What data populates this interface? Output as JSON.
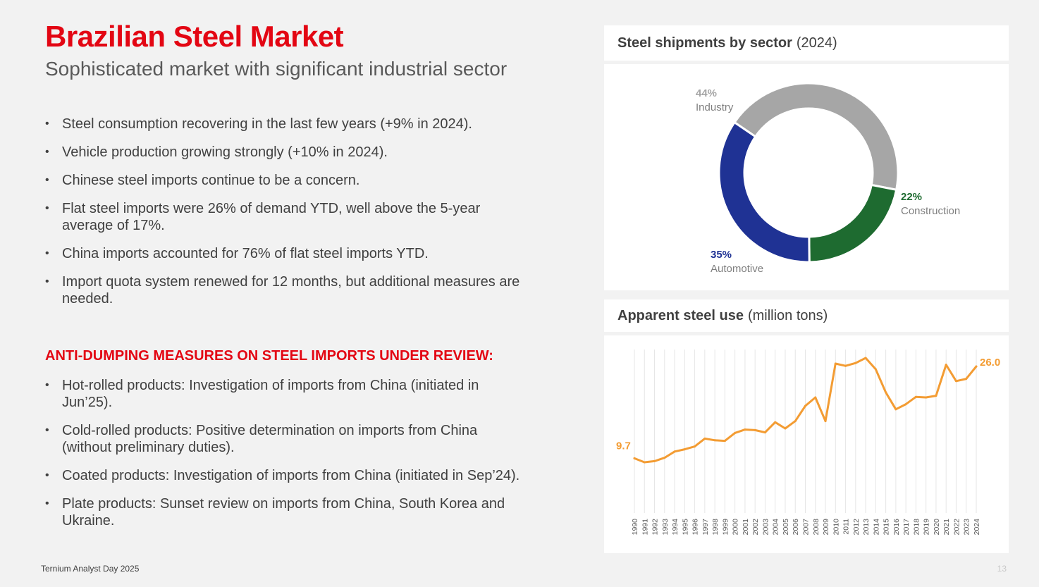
{
  "header": {
    "title": "Brazilian Steel Market",
    "subtitle": "Sophisticated market with significant industrial sector"
  },
  "bullets": [
    "Steel consumption recovering in the last few years (+9% in 2024).",
    "Vehicle production growing strongly (+10% in 2024).",
    "Chinese steel imports continue to be a concern.",
    "Flat steel imports were 26% of demand YTD, well above the 5-year average of 17%.",
    "China imports accounted for 76% of flat steel imports YTD.",
    "Import quota system renewed for 12 months, but additional measures are needed."
  ],
  "antidumping": {
    "heading": "ANTI-DUMPING MEASURES ON STEEL IMPORTS UNDER REVIEW:",
    "items": [
      "Hot-rolled products: Investigation of imports from China (initiated in Jun’25).",
      "Cold-rolled products: Positive determination on imports from China (without preliminary duties).",
      "Coated products: Investigation of imports from China (initiated in Sep’24).",
      "Plate products: Sunset review on imports from China, South Korea and Ukraine."
    ]
  },
  "footer": {
    "text": "Ternium Analyst Day 2025",
    "page": "13"
  },
  "donut_panel": {
    "title_bold": "Steel shipments by sector",
    "title_rest": "(2024)"
  },
  "line_panel": {
    "title_bold": "Apparent steel use",
    "title_rest": "(million tons)"
  },
  "chart_data": [
    {
      "type": "pie",
      "title": "Steel shipments by sector (2024)",
      "slices": [
        {
          "label": "Industry",
          "value": 44,
          "value_label": "44%",
          "color": "#a6a6a6"
        },
        {
          "label": "Construction",
          "value": 22,
          "value_label": "22%",
          "color": "#1e6b30"
        },
        {
          "label": "Automotive",
          "value": 35,
          "value_label": "35%",
          "color": "#1f3294"
        }
      ]
    },
    {
      "type": "line",
      "title": "Apparent steel use (million tons)",
      "color": "#f39c33",
      "x": [
        "1990",
        "1991",
        "1992",
        "1993",
        "1994",
        "1995",
        "1996",
        "1997",
        "1998",
        "1999",
        "2000",
        "2001",
        "2002",
        "2003",
        "2004",
        "2005",
        "2006",
        "2007",
        "2008",
        "2009",
        "2010",
        "2011",
        "2012",
        "2013",
        "2014",
        "2015",
        "2016",
        "2017",
        "2018",
        "2019",
        "2020",
        "2021",
        "2022",
        "2023",
        "2024"
      ],
      "values": [
        9.7,
        9.0,
        9.2,
        9.8,
        10.9,
        11.3,
        11.8,
        13.2,
        12.9,
        12.8,
        14.2,
        14.8,
        14.7,
        14.3,
        16.1,
        15.0,
        16.3,
        19.0,
        20.5,
        16.3,
        26.5,
        26.1,
        26.6,
        27.5,
        25.5,
        21.4,
        18.4,
        19.3,
        20.6,
        20.5,
        20.8,
        26.3,
        23.4,
        23.8,
        26.0
      ],
      "point_labels": [
        {
          "index": 0,
          "text": "9.7"
        },
        {
          "index": 34,
          "text": "26.0"
        }
      ],
      "ylim": [
        0,
        29
      ]
    }
  ]
}
